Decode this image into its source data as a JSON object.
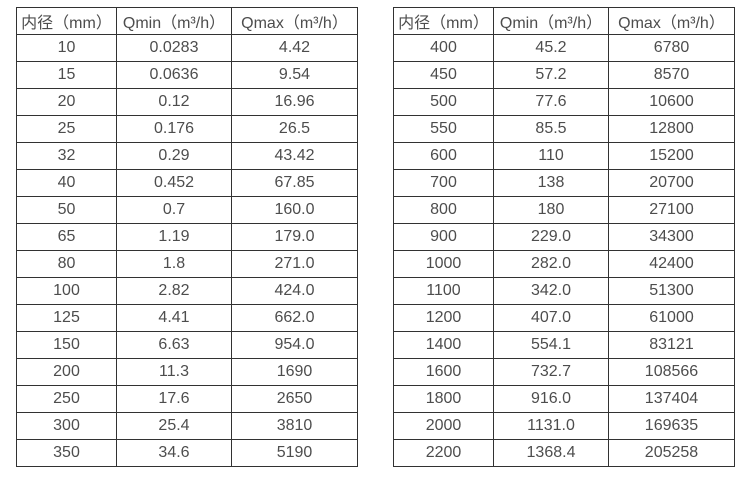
{
  "colors": {
    "background": "#ffffff",
    "border": "#323232",
    "text": "#4d4d4d"
  },
  "tables": [
    {
      "headers": [
        "内径（mm）",
        "Qmin（m³/h）",
        "Qmax（m³/h）"
      ],
      "rows": [
        [
          "10",
          "0.0283",
          "4.42"
        ],
        [
          "15",
          "0.0636",
          "9.54"
        ],
        [
          "20",
          "0.12",
          "16.96"
        ],
        [
          "25",
          "0.176",
          "26.5"
        ],
        [
          "32",
          "0.29",
          "43.42"
        ],
        [
          "40",
          "0.452",
          "67.85"
        ],
        [
          "50",
          "0.7",
          "160.0"
        ],
        [
          "65",
          "1.19",
          "179.0"
        ],
        [
          "80",
          "1.8",
          "271.0"
        ],
        [
          "100",
          "2.82",
          "424.0"
        ],
        [
          "125",
          "4.41",
          "662.0"
        ],
        [
          "150",
          "6.63",
          "954.0"
        ],
        [
          "200",
          "11.3",
          "1690"
        ],
        [
          "250",
          "17.6",
          "2650"
        ],
        [
          "300",
          "25.4",
          "3810"
        ],
        [
          "350",
          "34.6",
          "5190"
        ]
      ]
    },
    {
      "headers": [
        "内径（mm）",
        "Qmin（m³/h）",
        "Qmax（m³/h）"
      ],
      "rows": [
        [
          "400",
          "45.2",
          "6780"
        ],
        [
          "450",
          "57.2",
          "8570"
        ],
        [
          "500",
          "77.6",
          "10600"
        ],
        [
          "550",
          "85.5",
          "12800"
        ],
        [
          "600",
          "110",
          "15200"
        ],
        [
          "700",
          "138",
          "20700"
        ],
        [
          "800",
          "180",
          "27100"
        ],
        [
          "900",
          "229.0",
          "34300"
        ],
        [
          "1000",
          "282.0",
          "42400"
        ],
        [
          "1100",
          "342.0",
          "51300"
        ],
        [
          "1200",
          "407.0",
          "61000"
        ],
        [
          "1400",
          "554.1",
          "83121"
        ],
        [
          "1600",
          "732.7",
          "108566"
        ],
        [
          "1800",
          "916.0",
          "137404"
        ],
        [
          "2000",
          "1131.0",
          "169635"
        ],
        [
          "2200",
          "1368.4",
          "205258"
        ]
      ]
    }
  ]
}
